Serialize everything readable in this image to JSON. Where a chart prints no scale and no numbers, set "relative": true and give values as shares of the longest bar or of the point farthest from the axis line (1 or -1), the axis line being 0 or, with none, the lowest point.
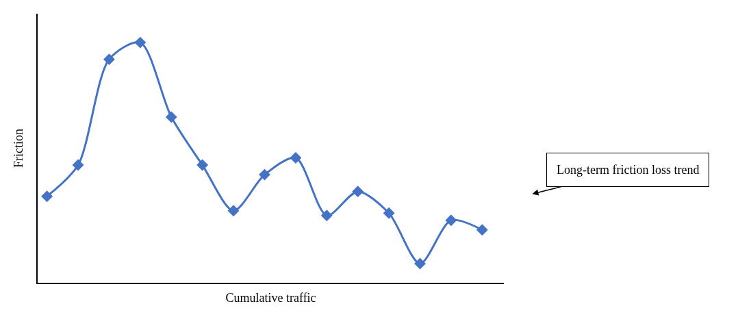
{
  "chart_data": {
    "type": "line",
    "relative": true,
    "xlabel": "Cumulative traffic",
    "ylabel": "Friction",
    "categories": [
      null,
      null,
      null,
      null,
      null,
      null,
      null,
      null,
      null,
      null,
      null,
      null,
      null,
      null,
      null
    ],
    "series": [
      {
        "color": "#4472c4",
        "values": [
          0.36,
          0.49,
          0.93,
          1,
          0.69,
          0.49,
          0.3,
          0.45,
          0.52,
          0.28,
          0.38,
          0.29,
          0.08,
          0.26,
          0.22
        ]
      }
    ],
    "marker": "diamond",
    "line_style": "solid",
    "legend": false,
    "annotations": [
      "Long-term friction loss trend"
    ]
  }
}
